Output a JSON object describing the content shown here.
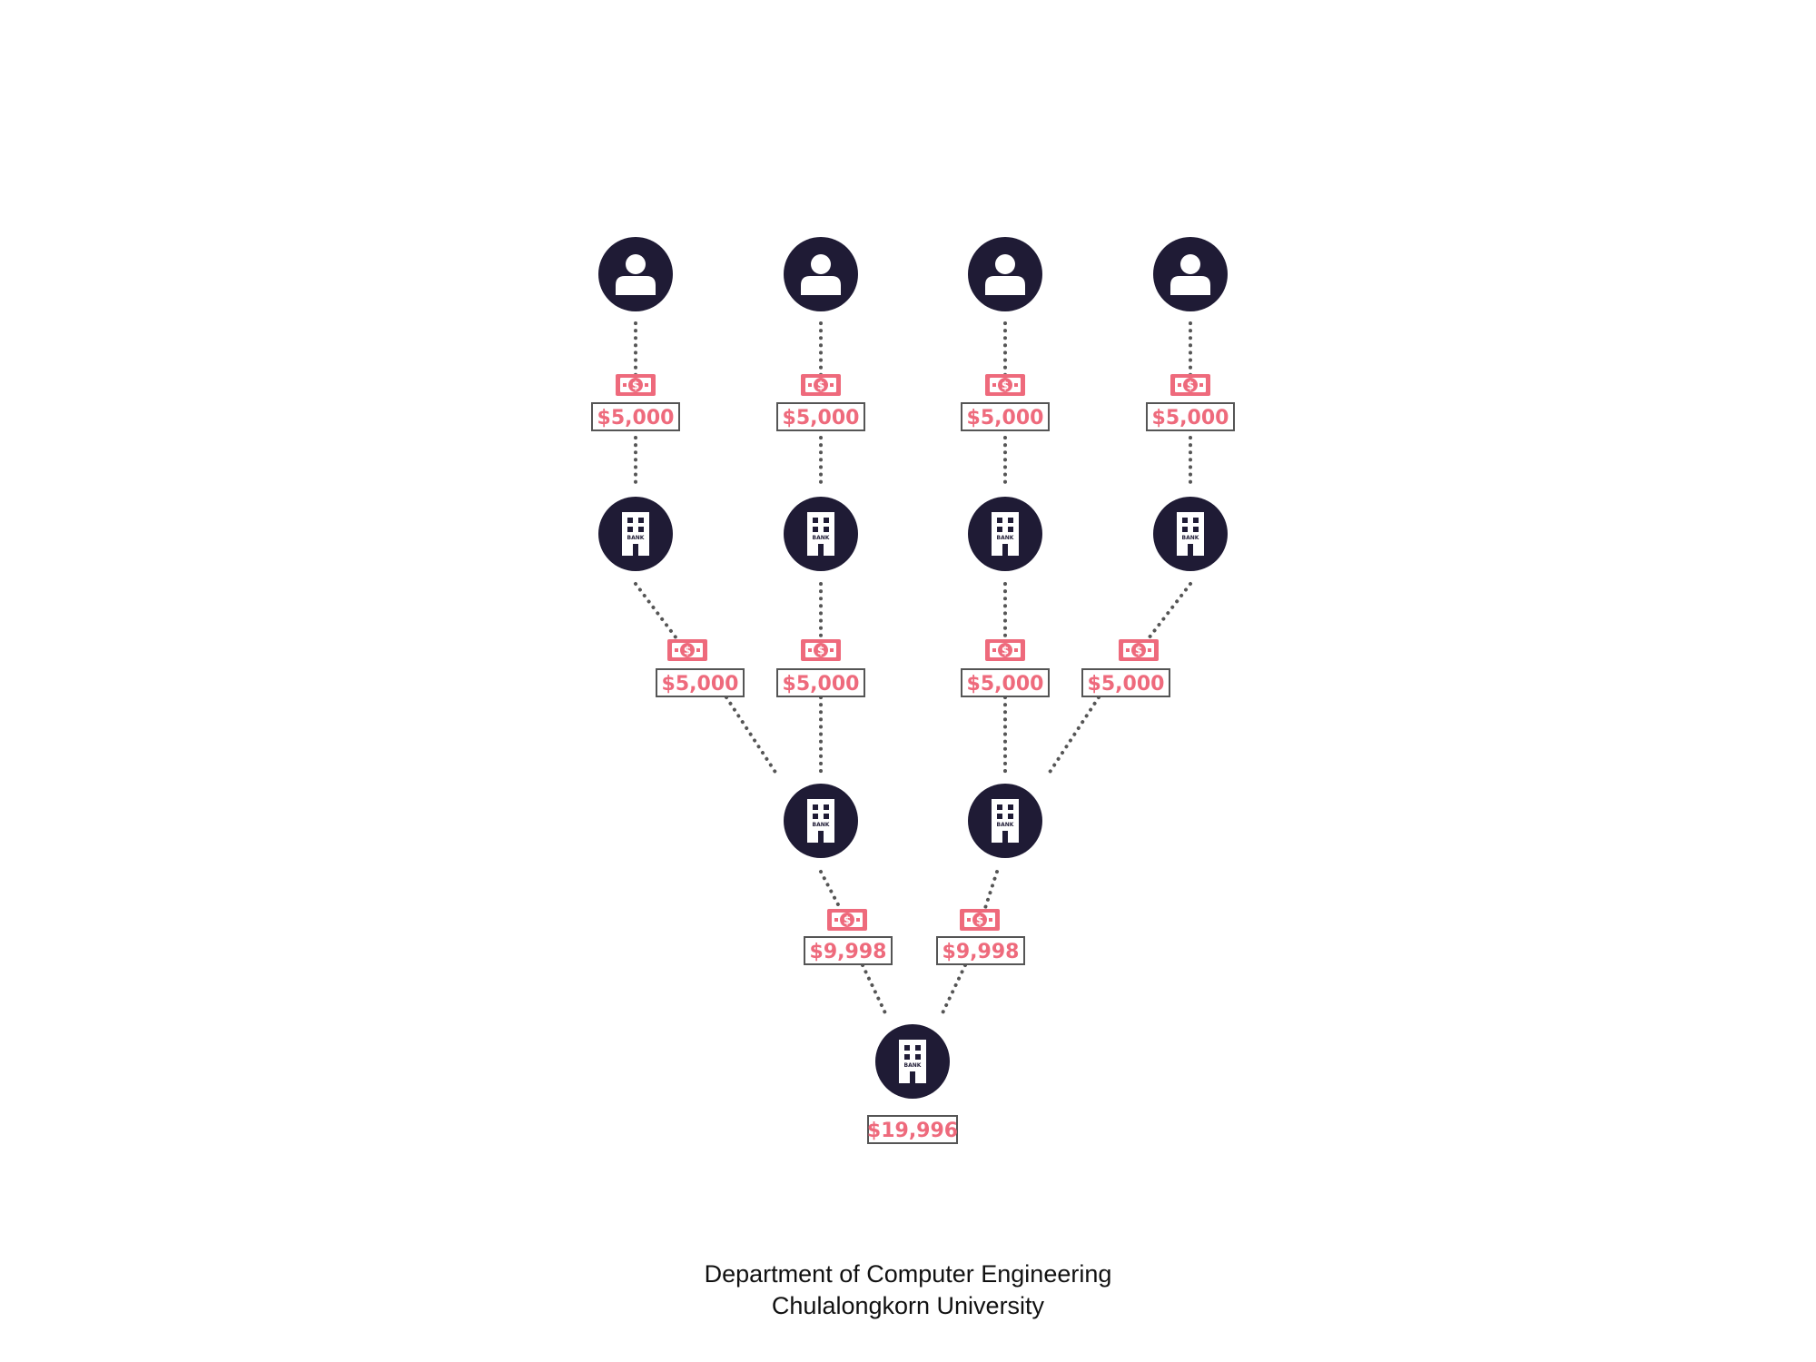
{
  "colors": {
    "node_fill": "#1f1b35",
    "money": "#ee6a7c",
    "edge": "#555555",
    "label_border": "#555555"
  },
  "nodes": [
    {
      "id": "person-1",
      "type": "person",
      "icon": "person-icon"
    },
    {
      "id": "person-2",
      "type": "person",
      "icon": "person-icon"
    },
    {
      "id": "person-3",
      "type": "person",
      "icon": "person-icon"
    },
    {
      "id": "person-4",
      "type": "person",
      "icon": "person-icon"
    },
    {
      "id": "bank-1",
      "type": "bank",
      "icon": "bank-icon",
      "icon_text": "BANK"
    },
    {
      "id": "bank-2",
      "type": "bank",
      "icon": "bank-icon",
      "icon_text": "BANK"
    },
    {
      "id": "bank-3",
      "type": "bank",
      "icon": "bank-icon",
      "icon_text": "BANK"
    },
    {
      "id": "bank-4",
      "type": "bank",
      "icon": "bank-icon",
      "icon_text": "BANK"
    },
    {
      "id": "bank-5",
      "type": "bank",
      "icon": "bank-icon",
      "icon_text": "BANK"
    },
    {
      "id": "bank-6",
      "type": "bank",
      "icon": "bank-icon",
      "icon_text": "BANK"
    },
    {
      "id": "bank-final",
      "type": "bank",
      "icon": "bank-icon",
      "icon_text": "BANK"
    }
  ],
  "edges": [
    {
      "from": "person-1",
      "to": "bank-1",
      "amount": "$5,000",
      "icon": "money-icon"
    },
    {
      "from": "person-2",
      "to": "bank-2",
      "amount": "$5,000",
      "icon": "money-icon"
    },
    {
      "from": "person-3",
      "to": "bank-3",
      "amount": "$5,000",
      "icon": "money-icon"
    },
    {
      "from": "person-4",
      "to": "bank-4",
      "amount": "$5,000",
      "icon": "money-icon"
    },
    {
      "from": "bank-1",
      "to": "bank-5",
      "amount": "$5,000",
      "icon": "money-icon"
    },
    {
      "from": "bank-2",
      "to": "bank-5",
      "amount": "$5,000",
      "icon": "money-icon"
    },
    {
      "from": "bank-3",
      "to": "bank-6",
      "amount": "$5,000",
      "icon": "money-icon"
    },
    {
      "from": "bank-4",
      "to": "bank-6",
      "amount": "$5,000",
      "icon": "money-icon"
    },
    {
      "from": "bank-5",
      "to": "bank-final",
      "amount": "$9,998",
      "icon": "money-icon"
    },
    {
      "from": "bank-6",
      "to": "bank-final",
      "amount": "$9,998",
      "icon": "money-icon"
    }
  ],
  "total": {
    "node": "bank-final",
    "amount": "$19,996"
  },
  "footer": {
    "line1": "Department of Computer Engineering",
    "line2": "Chulalongkorn University"
  }
}
